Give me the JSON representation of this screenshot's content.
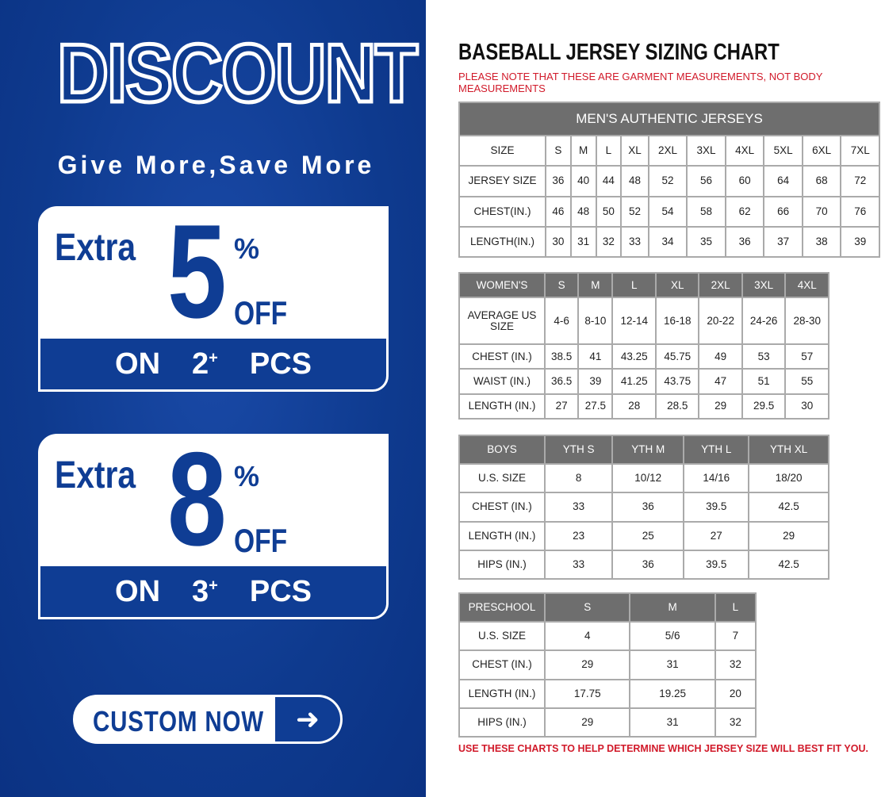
{
  "promo": {
    "headline": "DISCOUNT",
    "tagline": "Give More,Save More",
    "offers": [
      {
        "extra": "Extra",
        "value": "5",
        "percent": "%",
        "off": "OFF",
        "on": "ON",
        "qty": "2",
        "plus": "+",
        "pcs": "PCS"
      },
      {
        "extra": "Extra",
        "value": "8",
        "percent": "%",
        "off": "OFF",
        "on": "ON",
        "qty": "3",
        "plus": "+",
        "pcs": "PCS"
      }
    ],
    "cta": "CUSTOM NOW",
    "cta_icon": "arrow-right-icon",
    "brand_color": "#0f3d94"
  },
  "chart": {
    "title": "BASEBALL JERSEY SIZING CHART",
    "note": "PLEASE NOTE THAT THESE ARE GARMENT MEASUREMENTS, NOT BODY MEASUREMENTS",
    "footer": "USE THESE CHARTS TO HELP DETERMINE WHICH JERSEY SIZE WILL BEST FIT YOU.",
    "note_color": "#d11a2a",
    "header_color": "#6e6e6e",
    "tables": [
      {
        "caption": "MEN'S AUTHENTIC JERSEYS",
        "header": [],
        "rows": [
          [
            "SIZE",
            "S",
            "M",
            "L",
            "XL",
            "2XL",
            "3XL",
            "4XL",
            "5XL",
            "6XL",
            "7XL"
          ],
          [
            "JERSEY SIZE",
            "36",
            "40",
            "44",
            "48",
            "52",
            "56",
            "60",
            "64",
            "68",
            "72"
          ],
          [
            "CHEST(IN.)",
            "46",
            "48",
            "50",
            "52",
            "54",
            "58",
            "62",
            "66",
            "70",
            "76"
          ],
          [
            "LENGTH(IN.)",
            "30",
            "31",
            "32",
            "33",
            "34",
            "35",
            "36",
            "37",
            "38",
            "39"
          ]
        ]
      },
      {
        "caption": "",
        "header": [
          "WOMEN'S",
          "S",
          "M",
          "L",
          "XL",
          "2XL",
          "3XL",
          "4XL"
        ],
        "rows": [
          [
            "AVERAGE US SIZE",
            "4-6",
            "8-10",
            "12-14",
            "16-18",
            "20-22",
            "24-26",
            "28-30"
          ],
          [
            "CHEST (IN.)",
            "38.5",
            "41",
            "43.25",
            "45.75",
            "49",
            "53",
            "57"
          ],
          [
            "WAIST (IN.)",
            "36.5",
            "39",
            "41.25",
            "43.75",
            "47",
            "51",
            "55"
          ],
          [
            "LENGTH (IN.)",
            "27",
            "27.5",
            "28",
            "28.5",
            "29",
            "29.5",
            "30"
          ]
        ]
      },
      {
        "caption": "",
        "header": [
          "BOYS",
          "YTH S",
          "YTH M",
          "YTH L",
          "YTH XL"
        ],
        "rows": [
          [
            "U.S. SIZE",
            "8",
            "10/12",
            "14/16",
            "18/20"
          ],
          [
            "CHEST (IN.)",
            "33",
            "36",
            "39.5",
            "42.5"
          ],
          [
            "LENGTH (IN.)",
            "23",
            "25",
            "27",
            "29"
          ],
          [
            "HIPS (IN.)",
            "33",
            "36",
            "39.5",
            "42.5"
          ]
        ]
      },
      {
        "caption": "",
        "header": [
          "PRESCHOOL",
          "S",
          "M",
          "L"
        ],
        "rows": [
          [
            "U.S. SIZE",
            "4",
            "5/6",
            "7"
          ],
          [
            "CHEST (IN.)",
            "29",
            "31",
            "32"
          ],
          [
            "LENGTH (IN.)",
            "17.75",
            "19.25",
            "20"
          ],
          [
            "HIPS (IN.)",
            "29",
            "31",
            "32"
          ]
        ]
      }
    ]
  }
}
